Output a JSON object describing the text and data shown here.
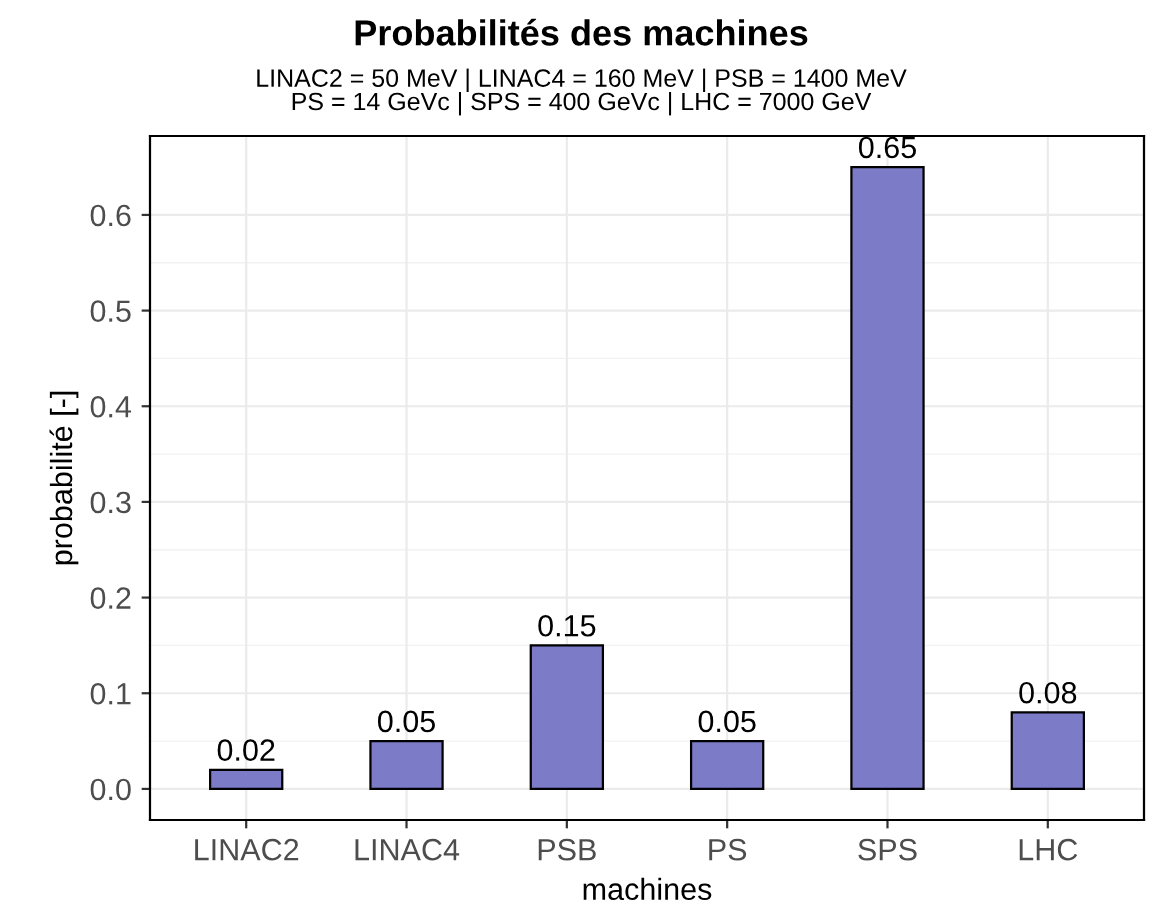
{
  "chart_data": {
    "type": "bar",
    "title": "Probabilités des machines",
    "subtitle": "LINAC2 = 50 MeV | LINAC4 = 160 MeV | PSB = 1400 MeV\nPS = 14 GeVc | SPS = 400 GeVc | LHC = 7000 GeV",
    "xlabel": "machines",
    "ylabel": "probabilité [-]",
    "categories": [
      "LINAC2",
      "LINAC4",
      "PSB",
      "PS",
      "SPS",
      "LHC"
    ],
    "values": [
      0.02,
      0.05,
      0.15,
      0.05,
      0.65,
      0.08
    ],
    "color": "#7b7bc8",
    "data_labels": true,
    "ylim": [
      -0.0325,
      0.6825
    ],
    "yticks": [
      {
        "value": 0,
        "label": "0.0"
      },
      0.1,
      0.2,
      0.3,
      0.4,
      0.5,
      0.6
    ],
    "grid": true,
    "legend": false
  }
}
